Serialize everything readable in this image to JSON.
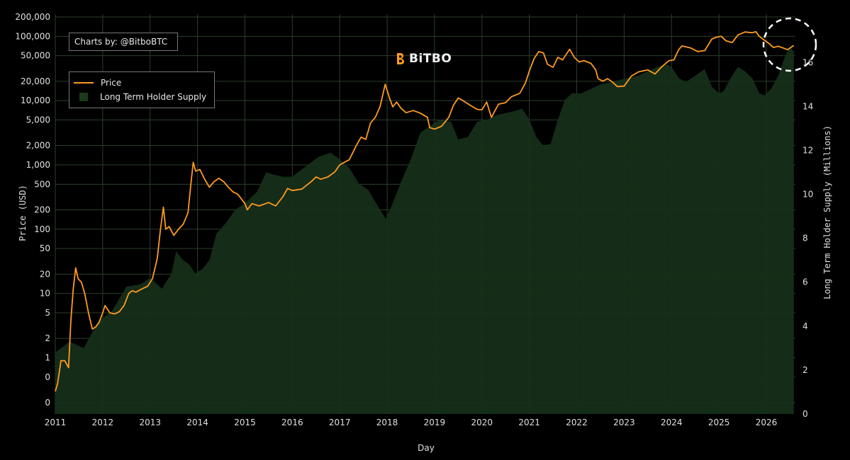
{
  "credit_text": "Charts by: @BitboBTC",
  "brand_name": "BiTBO",
  "colors": {
    "price": "#ff9a1f",
    "supply_fill": "#17301a",
    "grid": "#2b3f2b",
    "background": "#000000"
  },
  "chart_data": {
    "type": "line",
    "legend_placement": "top-left",
    "grid": true,
    "xlabel": "Day",
    "ylabel": "Price (USD)",
    "y2label": "Long Term Holder Supply (Millions)",
    "x_ticks": [
      "2011",
      "2012",
      "2013",
      "2014",
      "2015",
      "2016",
      "2017",
      "2018",
      "2019",
      "2020",
      "2021",
      "2022",
      "2023",
      "2024",
      "2025",
      "2026"
    ],
    "y_ticks": [
      {
        "label": "200,000",
        "value": 200000
      },
      {
        "label": "100,000",
        "value": 100000
      },
      {
        "label": "50,000",
        "value": 50000
      },
      {
        "label": "20,000",
        "value": 20000
      },
      {
        "label": "10,000",
        "value": 10000
      },
      {
        "label": "5,000",
        "value": 5000
      },
      {
        "label": "2,000",
        "value": 2000
      },
      {
        "label": "1,000",
        "value": 1000
      },
      {
        "label": "500",
        "value": 500
      },
      {
        "label": "200",
        "value": 200
      },
      {
        "label": "100",
        "value": 100
      },
      {
        "label": "50",
        "value": 50
      },
      {
        "label": "20",
        "value": 20
      },
      {
        "label": "10",
        "value": 10
      },
      {
        "label": "5",
        "value": 5
      },
      {
        "label": "2",
        "value": 2
      },
      {
        "label": "1",
        "value": 1
      },
      {
        "label": "0",
        "value": 0.5
      },
      {
        "label": "0",
        "value": 0.2
      }
    ],
    "y2_ticks": [
      "0",
      "2",
      "4",
      "6",
      "8",
      "10",
      "12",
      "14",
      "16"
    ],
    "y2lim": [
      0,
      18.2
    ],
    "series": [
      {
        "name": "Price",
        "kind": "line",
        "axis": "left",
        "points": [
          [
            2011.0,
            0.3
          ],
          [
            2011.05,
            0.4
          ],
          [
            2011.12,
            0.9
          ],
          [
            2011.2,
            0.9
          ],
          [
            2011.28,
            0.7
          ],
          [
            2011.33,
            4
          ],
          [
            2011.38,
            12
          ],
          [
            2011.43,
            25
          ],
          [
            2011.48,
            17
          ],
          [
            2011.55,
            15
          ],
          [
            2011.62,
            10
          ],
          [
            2011.7,
            5
          ],
          [
            2011.78,
            2.8
          ],
          [
            2011.85,
            3
          ],
          [
            2011.92,
            3.5
          ],
          [
            2012.0,
            5
          ],
          [
            2012.05,
            6.5
          ],
          [
            2012.15,
            5
          ],
          [
            2012.25,
            4.8
          ],
          [
            2012.35,
            5.2
          ],
          [
            2012.45,
            6.5
          ],
          [
            2012.55,
            10
          ],
          [
            2012.62,
            11
          ],
          [
            2012.7,
            10.5
          ],
          [
            2012.8,
            11.5
          ],
          [
            2012.95,
            13
          ],
          [
            2013.05,
            17
          ],
          [
            2013.15,
            35
          ],
          [
            2013.22,
            100
          ],
          [
            2013.28,
            220
          ],
          [
            2013.33,
            100
          ],
          [
            2013.4,
            110
          ],
          [
            2013.5,
            80
          ],
          [
            2013.6,
            100
          ],
          [
            2013.7,
            120
          ],
          [
            2013.8,
            180
          ],
          [
            2013.86,
            500
          ],
          [
            2013.91,
            1100
          ],
          [
            2013.96,
            800
          ],
          [
            2014.05,
            850
          ],
          [
            2014.15,
            600
          ],
          [
            2014.25,
            450
          ],
          [
            2014.35,
            550
          ],
          [
            2014.45,
            620
          ],
          [
            2014.55,
            550
          ],
          [
            2014.65,
            450
          ],
          [
            2014.75,
            380
          ],
          [
            2014.85,
            350
          ],
          [
            2015.0,
            250
          ],
          [
            2015.05,
            200
          ],
          [
            2015.15,
            250
          ],
          [
            2015.3,
            230
          ],
          [
            2015.5,
            260
          ],
          [
            2015.65,
            230
          ],
          [
            2015.8,
            320
          ],
          [
            2015.9,
            430
          ],
          [
            2016.0,
            400
          ],
          [
            2016.2,
            420
          ],
          [
            2016.4,
            550
          ],
          [
            2016.5,
            650
          ],
          [
            2016.6,
            600
          ],
          [
            2016.75,
            650
          ],
          [
            2016.9,
            780
          ],
          [
            2017.0,
            1000
          ],
          [
            2017.1,
            1100
          ],
          [
            2017.2,
            1200
          ],
          [
            2017.35,
            2000
          ],
          [
            2017.45,
            2700
          ],
          [
            2017.55,
            2500
          ],
          [
            2017.65,
            4500
          ],
          [
            2017.75,
            5500
          ],
          [
            2017.85,
            8000
          ],
          [
            2017.96,
            18000
          ],
          [
            2018.05,
            11000
          ],
          [
            2018.12,
            8000
          ],
          [
            2018.2,
            9500
          ],
          [
            2018.3,
            7500
          ],
          [
            2018.4,
            6500
          ],
          [
            2018.55,
            7000
          ],
          [
            2018.7,
            6400
          ],
          [
            2018.85,
            5500
          ],
          [
            2018.9,
            3800
          ],
          [
            2019.0,
            3600
          ],
          [
            2019.15,
            4000
          ],
          [
            2019.3,
            5500
          ],
          [
            2019.4,
            8500
          ],
          [
            2019.5,
            11000
          ],
          [
            2019.6,
            10000
          ],
          [
            2019.75,
            8500
          ],
          [
            2019.9,
            7300
          ],
          [
            2020.0,
            7200
          ],
          [
            2020.1,
            9500
          ],
          [
            2020.2,
            5500
          ],
          [
            2020.35,
            8800
          ],
          [
            2020.5,
            9300
          ],
          [
            2020.62,
            11500
          ],
          [
            2020.8,
            13000
          ],
          [
            2020.92,
            19000
          ],
          [
            2021.0,
            29000
          ],
          [
            2021.1,
            45000
          ],
          [
            2021.2,
            58000
          ],
          [
            2021.3,
            55000
          ],
          [
            2021.38,
            37000
          ],
          [
            2021.5,
            33000
          ],
          [
            2021.6,
            47000
          ],
          [
            2021.7,
            43000
          ],
          [
            2021.85,
            63000
          ],
          [
            2021.95,
            47000
          ],
          [
            2022.05,
            40000
          ],
          [
            2022.15,
            42000
          ],
          [
            2022.3,
            38000
          ],
          [
            2022.4,
            30000
          ],
          [
            2022.45,
            22000
          ],
          [
            2022.55,
            20000
          ],
          [
            2022.65,
            22000
          ],
          [
            2022.75,
            19500
          ],
          [
            2022.86,
            16500
          ],
          [
            2023.0,
            16800
          ],
          [
            2023.15,
            24000
          ],
          [
            2023.3,
            28000
          ],
          [
            2023.5,
            30000
          ],
          [
            2023.65,
            26000
          ],
          [
            2023.8,
            34000
          ],
          [
            2023.95,
            42000
          ],
          [
            2024.05,
            43000
          ],
          [
            2024.15,
            62000
          ],
          [
            2024.22,
            71000
          ],
          [
            2024.4,
            66000
          ],
          [
            2024.55,
            58000
          ],
          [
            2024.7,
            60000
          ],
          [
            2024.85,
            91000
          ],
          [
            2024.95,
            97000
          ],
          [
            2025.05,
            100000
          ],
          [
            2025.15,
            85000
          ],
          [
            2025.28,
            80000
          ],
          [
            2025.4,
            105000
          ],
          [
            2025.55,
            117000
          ],
          [
            2025.7,
            114000
          ],
          [
            2025.78,
            118000
          ],
          [
            2025.85,
            100000
          ],
          [
            2025.95,
            88000
          ],
          [
            2026.05,
            78000
          ],
          [
            2026.15,
            67000
          ],
          [
            2026.25,
            70000
          ],
          [
            2026.35,
            66000
          ],
          [
            2026.45,
            62000
          ],
          [
            2026.55,
            70000
          ],
          [
            2026.58,
            72000
          ]
        ]
      },
      {
        "name": "Long Term Holder Supply",
        "kind": "area",
        "axis": "right",
        "points": [
          [
            2011.0,
            2.8
          ],
          [
            2011.3,
            3.3
          ],
          [
            2011.6,
            3.0
          ],
          [
            2011.9,
            4.2
          ],
          [
            2012.2,
            4.7
          ],
          [
            2012.5,
            5.8
          ],
          [
            2012.8,
            5.9
          ],
          [
            2013.0,
            6.2
          ],
          [
            2013.25,
            5.7
          ],
          [
            2013.45,
            6.4
          ],
          [
            2013.55,
            7.4
          ],
          [
            2013.7,
            7.0
          ],
          [
            2013.83,
            6.8
          ],
          [
            2013.95,
            6.4
          ],
          [
            2014.1,
            6.6
          ],
          [
            2014.25,
            7.0
          ],
          [
            2014.4,
            8.2
          ],
          [
            2014.6,
            8.7
          ],
          [
            2014.8,
            9.3
          ],
          [
            2015.0,
            9.6
          ],
          [
            2015.25,
            10.1
          ],
          [
            2015.45,
            11.0
          ],
          [
            2015.6,
            10.9
          ],
          [
            2015.8,
            10.8
          ],
          [
            2016.0,
            10.8
          ],
          [
            2016.3,
            11.3
          ],
          [
            2016.55,
            11.7
          ],
          [
            2016.8,
            11.9
          ],
          [
            2017.0,
            11.6
          ],
          [
            2017.2,
            11.2
          ],
          [
            2017.4,
            10.5
          ],
          [
            2017.6,
            10.2
          ],
          [
            2017.85,
            9.3
          ],
          [
            2017.97,
            8.9
          ],
          [
            2018.1,
            9.5
          ],
          [
            2018.3,
            10.6
          ],
          [
            2018.5,
            11.6
          ],
          [
            2018.7,
            12.8
          ],
          [
            2018.9,
            13.1
          ],
          [
            2019.1,
            13.4
          ],
          [
            2019.35,
            13.3
          ],
          [
            2019.5,
            12.5
          ],
          [
            2019.7,
            12.6
          ],
          [
            2019.9,
            13.3
          ],
          [
            2020.1,
            13.4
          ],
          [
            2020.3,
            13.6
          ],
          [
            2020.5,
            13.7
          ],
          [
            2020.7,
            13.8
          ],
          [
            2020.85,
            13.9
          ],
          [
            2021.0,
            13.4
          ],
          [
            2021.15,
            12.6
          ],
          [
            2021.3,
            12.2
          ],
          [
            2021.45,
            12.3
          ],
          [
            2021.6,
            13.4
          ],
          [
            2021.75,
            14.3
          ],
          [
            2021.9,
            14.6
          ],
          [
            2022.1,
            14.6
          ],
          [
            2022.3,
            14.8
          ],
          [
            2022.5,
            15.0
          ],
          [
            2022.7,
            15.1
          ],
          [
            2022.9,
            15.2
          ],
          [
            2023.1,
            15.3
          ],
          [
            2023.3,
            15.4
          ],
          [
            2023.5,
            15.6
          ],
          [
            2023.7,
            15.8
          ],
          [
            2023.9,
            15.9
          ],
          [
            2024.0,
            15.8
          ],
          [
            2024.15,
            15.3
          ],
          [
            2024.3,
            15.1
          ],
          [
            2024.5,
            15.4
          ],
          [
            2024.7,
            15.7
          ],
          [
            2024.85,
            14.9
          ],
          [
            2025.0,
            14.6
          ],
          [
            2025.1,
            14.7
          ],
          [
            2025.25,
            15.3
          ],
          [
            2025.4,
            15.8
          ],
          [
            2025.55,
            15.6
          ],
          [
            2025.7,
            15.3
          ],
          [
            2025.85,
            14.6
          ],
          [
            2025.95,
            14.5
          ],
          [
            2026.1,
            14.8
          ],
          [
            2026.25,
            15.4
          ],
          [
            2026.4,
            16.3
          ],
          [
            2026.5,
            16.7
          ],
          [
            2026.58,
            16.5
          ]
        ]
      }
    ]
  }
}
